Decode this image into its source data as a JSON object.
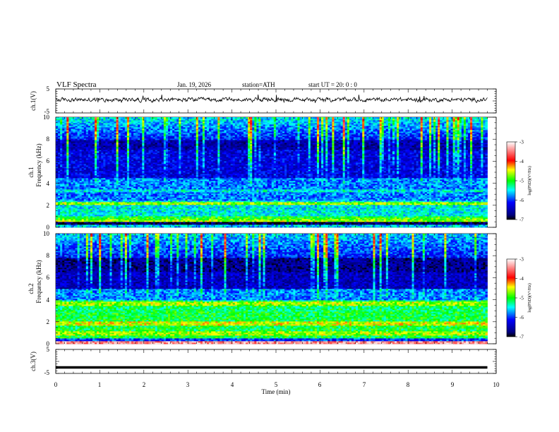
{
  "header": {
    "title": "VLF  Spectra",
    "date": "Jan. 19, 2026",
    "station": "station=ATH",
    "start_ut": "start  UT  =   20: 0  : 0"
  },
  "chart_data": [
    {
      "type": "line",
      "id": "ch1-waveform",
      "ylabel": "ch.1(V)",
      "ylim": [
        -5,
        5
      ],
      "yticks": [
        "5",
        "-5"
      ],
      "xlim": [
        0,
        10
      ],
      "data_extent_min": 9.8,
      "description_series": "noisy waveform near +0.5 V"
    },
    {
      "type": "heatmap",
      "id": "ch1-spectrogram",
      "ylabel_top": "ch.1",
      "ylabel": "Frequency  (kHz)",
      "ylim": [
        0,
        10
      ],
      "yticks": [
        "0",
        "2",
        "4",
        "6",
        "8",
        "10"
      ],
      "xlim": [
        0,
        10
      ],
      "colorbar": {
        "label": "log(PSD)(V²/Hz)",
        "range": [
          -7,
          -3
        ],
        "ticks": [
          "-3",
          "-4",
          "-5",
          "-6",
          "-7"
        ]
      }
    },
    {
      "type": "heatmap",
      "id": "ch2-spectrogram",
      "ylabel_top": "ch.2",
      "ylabel": "Frequency  (kHz)",
      "ylim": [
        0,
        10
      ],
      "yticks": [
        "0",
        "2",
        "4",
        "6",
        "8",
        "10"
      ],
      "xlim": [
        0,
        10
      ],
      "colorbar": {
        "label": "log(PSD)(V²/Hz)",
        "range": [
          -7,
          -3
        ],
        "ticks": [
          "-3",
          "-4",
          "-5",
          "-6",
          "-7"
        ]
      }
    },
    {
      "type": "line",
      "id": "ch3-waveform",
      "ylabel": "ch.3(V)",
      "ylim": [
        -5,
        5
      ],
      "yticks": [
        "5",
        "-5"
      ],
      "xlim": [
        0,
        10
      ],
      "constant_value": -2.5
    }
  ],
  "xaxis": {
    "label": "Time  (min)",
    "ticks": [
      "0",
      "1",
      "2",
      "3",
      "4",
      "5",
      "6",
      "7",
      "8",
      "9",
      "10"
    ]
  }
}
